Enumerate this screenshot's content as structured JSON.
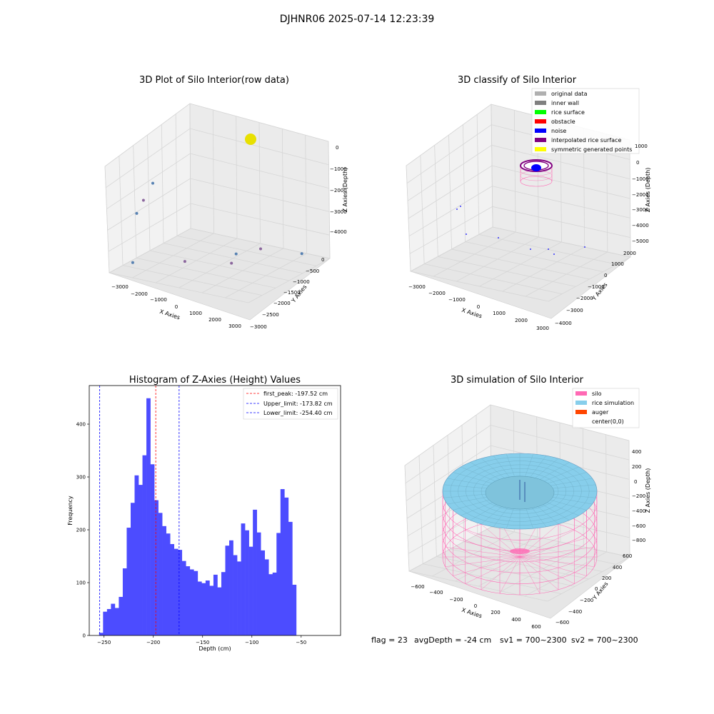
{
  "suptitle": "DJHNR06 2025-07-14 12:23:39",
  "footer": {
    "flag": "flag = 23",
    "avg": "avgDepth = -24 cm",
    "sv1": "sv1 = 700~2300",
    "sv2": "sv2 = 700~2300"
  },
  "colors": {
    "hist_bar": "#4c4cff",
    "first_peak": "#ff0000",
    "limit": "#0000ff",
    "silo": "#ff69b4",
    "rice": "#87ceeb",
    "auger": "#ff4500",
    "yellow": "#ffff00",
    "purple": "#800080"
  },
  "chart_data": [
    {
      "type": "scatter3d",
      "title": "3D Plot of Silo Interior(row data)",
      "xlabel": "X Axies",
      "ylabel": "Y Axies",
      "zlabel": "Z Axies (Depth)",
      "x_ticks": [
        "−3000",
        "−2000",
        "−1000",
        "0",
        "1000",
        "2000",
        "3000"
      ],
      "y_ticks": [
        "0",
        "−500",
        "−1000",
        "−1500",
        "−2000",
        "−2500",
        "−3000"
      ],
      "z_ticks": [
        "0",
        "−1000",
        "−2000",
        "−3000",
        "−4000"
      ],
      "points": [
        {
          "x": -3000,
          "y": -2500,
          "z": -4600
        },
        {
          "x": -1200,
          "y": -1900,
          "z": -4600
        },
        {
          "x": 150,
          "y": -1000,
          "z": -4600
        },
        {
          "x": 700,
          "y": -500,
          "z": -4600
        },
        {
          "x": 2500,
          "y": -300,
          "z": -4600
        },
        {
          "x": 600,
          "y": -1500,
          "z": -4600
        },
        {
          "x": -2800,
          "y": -2500,
          "z": -2600
        },
        {
          "x": -2600,
          "y": -2400,
          "z": -2100
        },
        {
          "x": -2400,
          "y": -2200,
          "z": -1500
        }
      ],
      "surface_cluster": {
        "x": 300,
        "y": -100,
        "z": 50
      }
    },
    {
      "type": "scatter3d",
      "title": "3D classify of Silo Interior",
      "xlabel": "X Axies",
      "ylabel": "Y Axies",
      "zlabel": "Z Axies (Depth)",
      "x_ticks": [
        "−3000",
        "−2000",
        "−1000",
        "0",
        "1000",
        "2000",
        "3000"
      ],
      "y_ticks": [
        "2000",
        "1000",
        "0",
        "−1000",
        "−2000",
        "−3000",
        "−4000"
      ],
      "z_ticks": [
        "1000",
        "0",
        "−1000",
        "−2000",
        "−3000",
        "−4000",
        "−5000"
      ],
      "legend": [
        {
          "label": "original data",
          "color": "#b0b0b0"
        },
        {
          "label": "inner wall",
          "color": "#808080"
        },
        {
          "label": "rice surface",
          "color": "#00ff00"
        },
        {
          "label": "obstacle",
          "color": "#ff0000"
        },
        {
          "label": "noise",
          "color": "#0000ff"
        },
        {
          "label": "interpolated rice surface",
          "color": "#800080"
        },
        {
          "label": "symmetric generated points",
          "color": "#ffff00"
        }
      ]
    },
    {
      "type": "bar",
      "title": "Histogram of Z-Axies (Height) Values",
      "xlabel": "Depth (cm)",
      "ylabel": "Frequency",
      "xlim": [
        -265,
        -10
      ],
      "ylim": [
        0,
        473
      ],
      "x_ticks": [
        -250,
        -200,
        -150,
        -100,
        -50
      ],
      "y_ticks": [
        0,
        100,
        200,
        300,
        400
      ],
      "bin_start": -255,
      "bin_width": 4.0,
      "values": [
        5,
        45,
        50,
        60,
        52,
        73,
        127,
        204,
        251,
        303,
        285,
        341,
        449,
        324,
        256,
        232,
        207,
        193,
        173,
        164,
        162,
        141,
        131,
        125,
        122,
        102,
        99,
        104,
        94,
        115,
        91,
        120,
        170,
        180,
        152,
        140,
        212,
        199,
        168,
        238,
        195,
        161,
        144,
        116,
        119,
        194,
        277,
        261,
        215,
        96
      ],
      "lines": [
        {
          "label": "first_peak: -197.52 cm",
          "x": -197.52,
          "color": "#ff0000"
        },
        {
          "label": "Upper_limit: -173.82 cm",
          "x": -173.82,
          "color": "#0000ff"
        },
        {
          "label": "Lower_limit: -254.40 cm",
          "x": -254.4,
          "color": "#0000ff"
        }
      ]
    },
    {
      "type": "surface3d",
      "title": "3D simulation of Silo Interior",
      "xlabel": "X Axies",
      "ylabel": "Y Axies",
      "zlabel": "Z Axies (Depth)",
      "x_ticks": [
        "−600",
        "−400",
        "−200",
        "0",
        "200",
        "400",
        "600"
      ],
      "y_ticks": [
        "600",
        "400",
        "200",
        "0",
        "−200",
        "−400",
        "−600"
      ],
      "z_ticks": [
        "400",
        "200",
        "0",
        "−200",
        "−400",
        "−600",
        "−800"
      ],
      "legend": [
        {
          "label": "silo",
          "color": "#ff69b4"
        },
        {
          "label": "rice simulation",
          "color": "#87ceeb"
        },
        {
          "label": "auger",
          "color": "#ff4500"
        },
        {
          "label": "center(0,0)",
          "color": ""
        }
      ]
    }
  ]
}
